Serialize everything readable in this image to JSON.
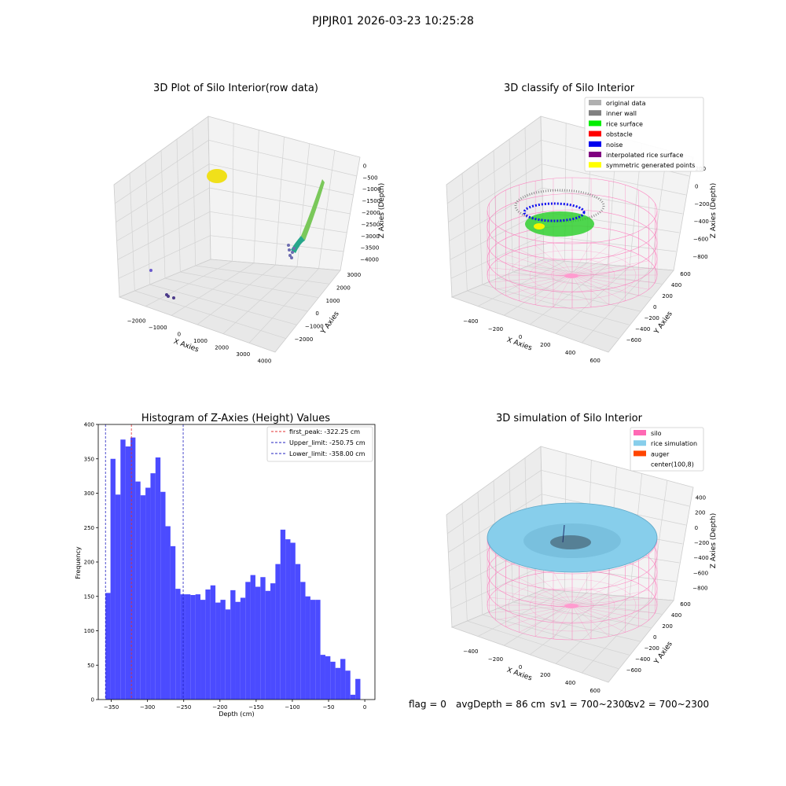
{
  "figure": {
    "suptitle": "PJPJR01 2026-03-23 10:25:28"
  },
  "colors": {
    "hist_fill": "#4b4bff",
    "first_peak": "#e03030",
    "limit_lines": "#2020c0",
    "silo_pink": "#ff69b4",
    "rice_blue": "#87ceeb",
    "auger": "#ff4500",
    "pane": "#f2f2f2",
    "grid": "#d0d0d0"
  },
  "plot_raw": {
    "title": "3D Plot of Silo Interior(row data)",
    "xlabel": "X Axies",
    "ylabel": "Y Axies",
    "zlabel": "Z Axies (Depth)",
    "xticks": [
      "−2000",
      "−1000",
      "0",
      "1000",
      "2000",
      "3000",
      "4000"
    ],
    "yticks": [
      "−2000",
      "−1000",
      "0",
      "1000",
      "2000",
      "3000"
    ],
    "zticks": [
      "0",
      "−500",
      "−1000",
      "−1500",
      "−2000",
      "−2500",
      "−3000",
      "−3500",
      "−4000"
    ]
  },
  "plot_classify": {
    "title": "3D classify of Silo Interior",
    "xlabel": "X Axies",
    "ylabel": "Y Axies",
    "zlabel": "Z Axies (Depth)",
    "xticks": [
      "−400",
      "−200",
      "0",
      "200",
      "400",
      "600"
    ],
    "yticks": [
      "−600",
      "−400",
      "−200",
      "0",
      "200",
      "400",
      "600"
    ],
    "zticks": [
      "200",
      "0",
      "−200",
      "−400",
      "−600",
      "−800"
    ],
    "legend": [
      {
        "label": "original data",
        "color": "#b0b0b0"
      },
      {
        "label": "inner wall",
        "color": "#808080"
      },
      {
        "label": "rice surface",
        "color": "#00ee00"
      },
      {
        "label": "obstacle",
        "color": "#ff0000"
      },
      {
        "label": "noise",
        "color": "#0000ee"
      },
      {
        "label": "interpolated rice surface",
        "color": "#800080"
      },
      {
        "label": "symmetric generated points",
        "color": "#ffff00"
      }
    ]
  },
  "plot_sim": {
    "title": "3D simulation of Silo Interior",
    "xlabel": "X Axies",
    "ylabel": "Y Axies",
    "zlabel": "Z Axies (Depth)",
    "xticks": [
      "−400",
      "−200",
      "0",
      "200",
      "400",
      "600"
    ],
    "yticks": [
      "−600",
      "−400",
      "−200",
      "0",
      "200",
      "400",
      "600"
    ],
    "zticks": [
      "400",
      "200",
      "0",
      "−200",
      "−400",
      "−600",
      "−800"
    ],
    "legend": [
      {
        "label": "silo",
        "color": "#ff69b4"
      },
      {
        "label": "rice simulation",
        "color": "#87ceeb"
      },
      {
        "label": "auger",
        "color": "#ff4500"
      },
      {
        "label": "center(100,8)",
        "color": ""
      }
    ]
  },
  "status": {
    "flag": "flag = 0",
    "avg_depth": "avgDepth = 86 cm",
    "sv1": "sv1 = 700~2300",
    "sv2": "sv2 = 700~2300"
  },
  "chart_data": [
    {
      "type": "bar",
      "title": "Histogram of Z-Axies (Height) Values",
      "xlabel": "Depth (cm)",
      "ylabel": "Frequency",
      "xlim": [
        -368,
        14
      ],
      "ylim": [
        0,
        400
      ],
      "xticks": [
        -350,
        -300,
        -250,
        -200,
        -150,
        -100,
        -50,
        0
      ],
      "xtick_labels": [
        "−350",
        "−300",
        "−250",
        "−200",
        "−150",
        "−100",
        "−50",
        "0"
      ],
      "yticks": [
        0,
        50,
        100,
        150,
        200,
        250,
        300,
        350,
        400
      ],
      "bin_start": -358,
      "bin_width": 6.9,
      "values": [
        155,
        350,
        298,
        378,
        368,
        381,
        317,
        297,
        308,
        329,
        352,
        302,
        252,
        223,
        161,
        153,
        153,
        152,
        153,
        145,
        160,
        166,
        141,
        145,
        131,
        159,
        142,
        148,
        171,
        181,
        164,
        178,
        158,
        169,
        197,
        247,
        233,
        228,
        197,
        171,
        150,
        145,
        145,
        65,
        63,
        55,
        46,
        59,
        42,
        7,
        30
      ],
      "vlines": [
        {
          "x": -322.25,
          "label": "first_peak: -322.25 cm",
          "style": "peak"
        },
        {
          "x": -250.75,
          "label": "Upper_limit: -250.75 cm",
          "style": "limit"
        },
        {
          "x": -358.0,
          "label": "Lower_limit: -358.00 cm",
          "style": "limit"
        }
      ],
      "legend_position": "upper right"
    }
  ]
}
